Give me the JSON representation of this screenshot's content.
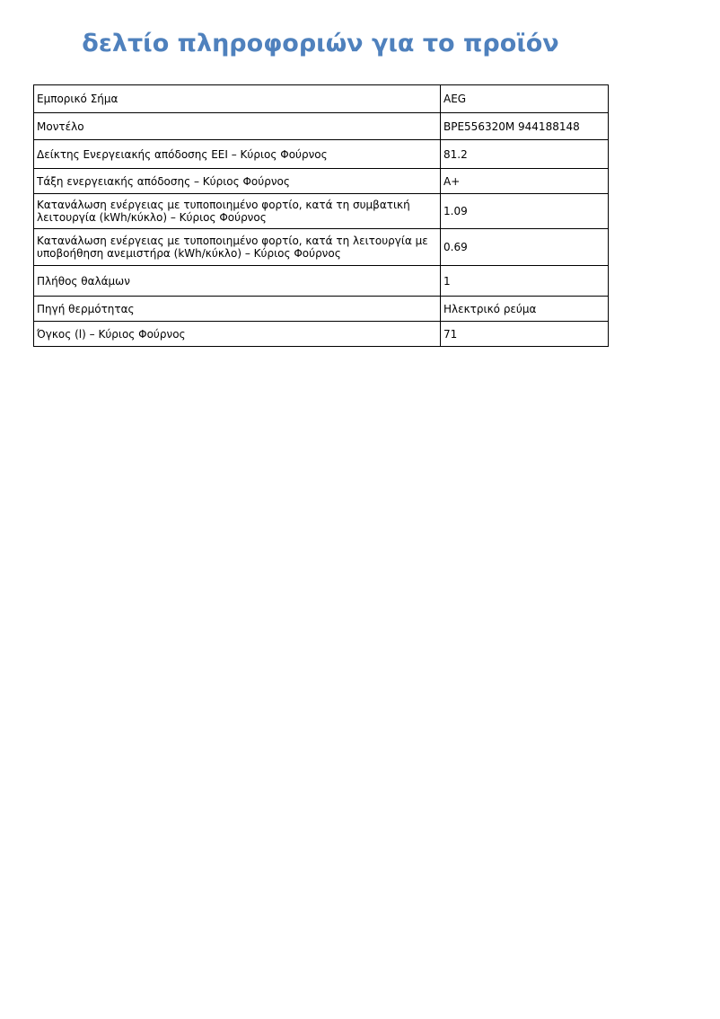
{
  "page": {
    "title": "δελτίο πληροφοριών για το προϊόν",
    "title_color": "#4F81BD",
    "background_color": "#ffffff",
    "border_color": "#000000"
  },
  "table": {
    "rows": [
      {
        "label": "Εμπορικό Σήμα",
        "value": "AEG"
      },
      {
        "label": "Μοντέλο",
        "value": "BPE556320M 944188148"
      },
      {
        "label": "Δείκτης Ενεργειακής απόδοσης EEI – Κύριος Φούρνος",
        "value": "81.2"
      },
      {
        "label": "Τάξη ενεργειακής απόδοσης – Κύριος Φούρνος",
        "value": "A+"
      },
      {
        "label": "Κατανάλωση ενέργειας με τυποποιημένο φορτίο, κατά τη συμβατική λειτουργία (kWh/κύκλο) – Κύριος Φούρνος",
        "value": "1.09"
      },
      {
        "label": "Κατανάλωση ενέργειας με τυποποιημένο φορτίο, κατά τη λειτουργία με υποβοήθηση ανεμιστήρα (kWh/κύκλο) – Κύριος Φούρνος",
        "value": "0.69"
      },
      {
        "label": "Πλήθος θαλάμων",
        "value": "1"
      },
      {
        "label": "Πηγή θερμότητας",
        "value": "Ηλεκτρικό ρεύμα"
      },
      {
        "label": "Όγκος (l) – Κύριος Φούρνος",
        "value": "71"
      }
    ]
  }
}
